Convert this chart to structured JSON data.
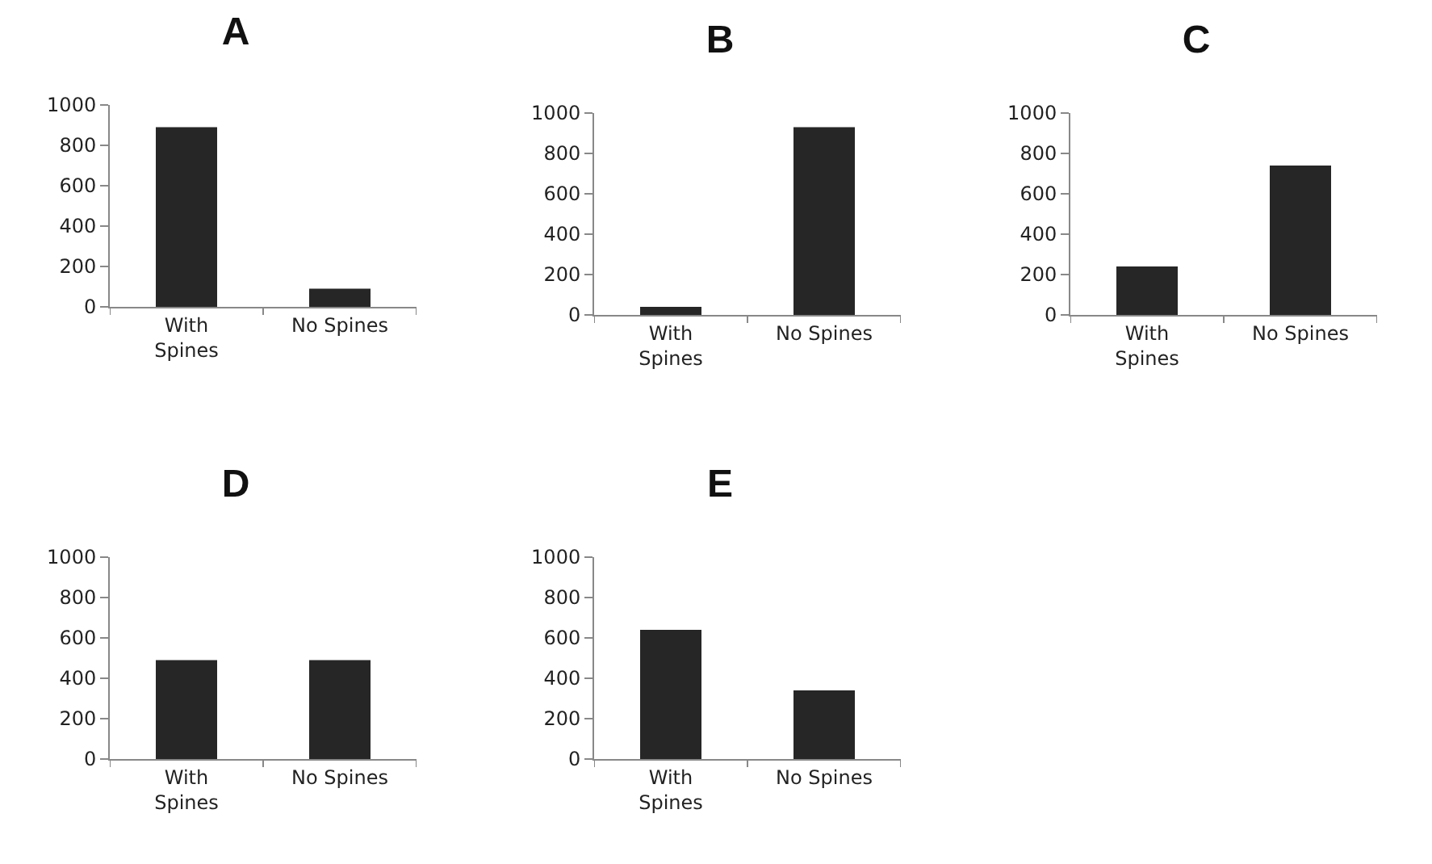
{
  "chart_data": [
    {
      "type": "bar",
      "title": "A",
      "categories": [
        "With Spines",
        "No Spines"
      ],
      "values": [
        890,
        90
      ],
      "color": "#262626",
      "ylim": [
        0,
        1000
      ],
      "yticks": [
        0,
        200,
        400,
        600,
        800,
        1000
      ],
      "grid": false
    },
    {
      "type": "bar",
      "title": "B",
      "categories": [
        "With Spines",
        "No Spines"
      ],
      "values": [
        40,
        930
      ],
      "color": "#262626",
      "ylim": [
        0,
        1000
      ],
      "yticks": [
        0,
        200,
        400,
        600,
        800,
        1000
      ],
      "grid": false
    },
    {
      "type": "bar",
      "title": "C",
      "categories": [
        "With Spines",
        "No Spines"
      ],
      "values": [
        240,
        740
      ],
      "color": "#262626",
      "ylim": [
        0,
        1000
      ],
      "yticks": [
        0,
        200,
        400,
        600,
        800,
        1000
      ],
      "grid": false
    },
    {
      "type": "bar",
      "title": "D",
      "categories": [
        "With Spines",
        "No Spines"
      ],
      "values": [
        490,
        490
      ],
      "color": "#262626",
      "ylim": [
        0,
        1000
      ],
      "yticks": [
        0,
        200,
        400,
        600,
        800,
        1000
      ],
      "grid": false
    },
    {
      "type": "bar",
      "title": "E",
      "categories": [
        "With Spines",
        "No Spines"
      ],
      "values": [
        640,
        340
      ],
      "color": "#262626",
      "ylim": [
        0,
        1000
      ],
      "yticks": [
        0,
        200,
        400,
        600,
        800,
        1000
      ],
      "grid": false
    }
  ]
}
